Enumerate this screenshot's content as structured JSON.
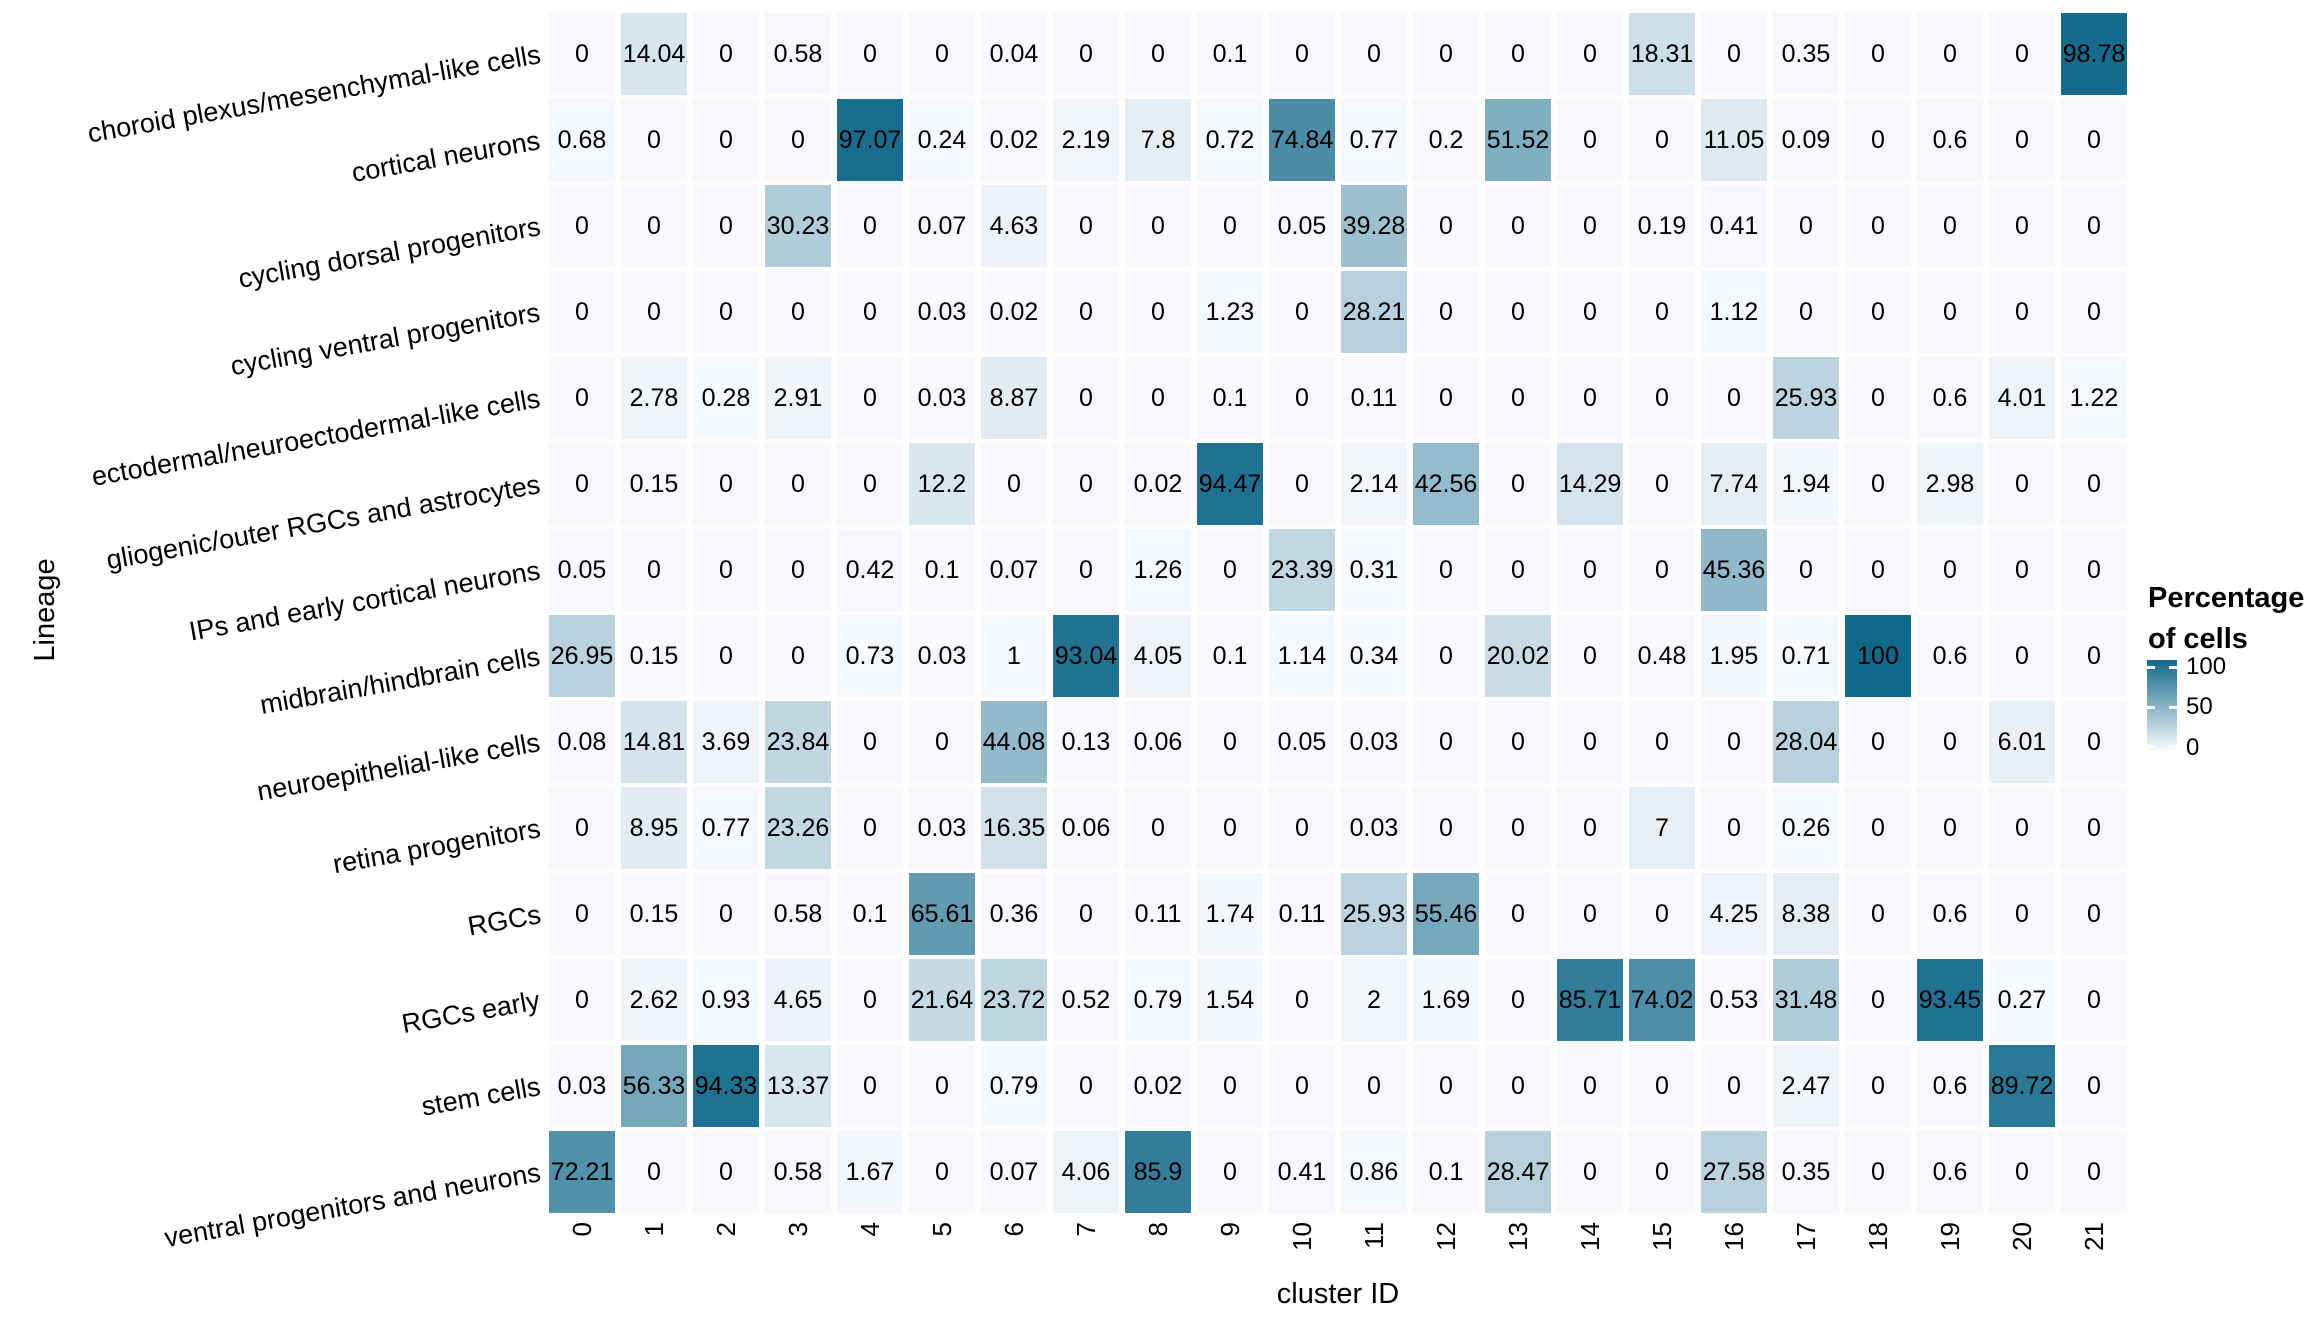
{
  "figure_title": "",
  "legend": {
    "title_line1": "Percentage",
    "title_line2": "of cells",
    "tick_labels": [
      "100",
      "50",
      "0"
    ]
  },
  "chart_data": {
    "type": "heatmap",
    "title": "",
    "xlabel": "cluster ID",
    "ylabel": "Lineage",
    "legend_position": "right",
    "grid": false,
    "color_low": "#f7f9fd",
    "color_high": "#11698a",
    "value_range": [
      0,
      100
    ],
    "colorbar": {
      "title": "Percentage of cells",
      "ticks": [
        100,
        50,
        0
      ]
    },
    "x": [
      "0",
      "1",
      "2",
      "3",
      "4",
      "5",
      "6",
      "7",
      "8",
      "9",
      "10",
      "11",
      "12",
      "13",
      "14",
      "15",
      "16",
      "17",
      "18",
      "19",
      "20",
      "21"
    ],
    "categories": [
      "choroid plexus/mesenchymal-like cells",
      "cortical neurons",
      "cycling dorsal progenitors",
      "cycling ventral progenitors",
      "ectodermal/neuroectodermal-like cells",
      "gliogenic/outer RGCs and astrocytes",
      "IPs and early cortical neurons",
      "midbrain/hindbrain cells",
      "neuroepithelial-like cells",
      "retina progenitors",
      "RGCs",
      "RGCs early",
      "stem cells",
      "ventral progenitors and neurons"
    ],
    "values": [
      [
        0,
        14.04,
        0,
        0.58,
        0,
        0,
        0.04,
        0,
        0,
        0.1,
        0,
        0,
        0,
        0,
        0,
        18.31,
        0,
        0.35,
        0,
        0,
        0,
        98.78
      ],
      [
        0.68,
        0,
        0,
        0,
        97.07,
        0.24,
        0.02,
        2.19,
        7.8,
        0.72,
        74.84,
        0.77,
        0.2,
        51.52,
        0,
        0,
        11.05,
        0.09,
        0,
        0.6,
        0,
        0
      ],
      [
        0,
        0,
        0,
        30.23,
        0,
        0.07,
        4.63,
        0,
        0,
        0,
        0.05,
        39.28,
        0,
        0,
        0,
        0.19,
        0.41,
        0,
        0,
        0,
        0,
        0
      ],
      [
        0,
        0,
        0,
        0,
        0,
        0.03,
        0.02,
        0,
        0,
        1.23,
        0,
        28.21,
        0,
        0,
        0,
        0,
        1.12,
        0,
        0,
        0,
        0,
        0
      ],
      [
        0,
        2.78,
        0.28,
        2.91,
        0,
        0.03,
        8.87,
        0,
        0,
        0.1,
        0,
        0.11,
        0,
        0,
        0,
        0,
        0,
        25.93,
        0,
        0.6,
        4.01,
        1.22
      ],
      [
        0,
        0.15,
        0,
        0,
        0,
        12.2,
        0,
        0,
        0.02,
        94.47,
        0,
        2.14,
        42.56,
        0,
        14.29,
        0,
        7.74,
        1.94,
        0,
        2.98,
        0,
        0
      ],
      [
        0.05,
        0,
        0,
        0,
        0.42,
        0.1,
        0.07,
        0,
        1.26,
        0,
        23.39,
        0.31,
        0,
        0,
        0,
        0,
        45.36,
        0,
        0,
        0,
        0,
        0
      ],
      [
        26.95,
        0.15,
        0,
        0,
        0.73,
        0.03,
        1,
        93.04,
        4.05,
        0.1,
        1.14,
        0.34,
        0,
        20.02,
        0,
        0.48,
        1.95,
        0.71,
        100,
        0.6,
        0,
        0
      ],
      [
        0.08,
        14.81,
        3.69,
        23.84,
        0,
        0,
        44.08,
        0.13,
        0.06,
        0,
        0.05,
        0.03,
        0,
        0,
        0,
        0,
        0,
        28.04,
        0,
        0,
        6.01,
        0
      ],
      [
        0,
        8.95,
        0.77,
        23.26,
        0,
        0.03,
        16.35,
        0.06,
        0,
        0,
        0,
        0.03,
        0,
        0,
        0,
        7,
        0,
        0.26,
        0,
        0,
        0,
        0
      ],
      [
        0,
        0.15,
        0,
        0.58,
        0.1,
        65.61,
        0.36,
        0,
        0.11,
        1.74,
        0.11,
        25.93,
        55.46,
        0,
        0,
        0,
        4.25,
        8.38,
        0,
        0.6,
        0,
        0
      ],
      [
        0,
        2.62,
        0.93,
        4.65,
        0,
        21.64,
        23.72,
        0.52,
        0.79,
        1.54,
        0,
        2,
        1.69,
        0,
        85.71,
        74.02,
        0.53,
        31.48,
        0,
        93.45,
        0.27,
        0
      ],
      [
        0.03,
        56.33,
        94.33,
        13.37,
        0,
        0,
        0.79,
        0,
        0.02,
        0,
        0,
        0,
        0,
        0,
        0,
        0,
        0,
        2.47,
        0,
        0.6,
        89.72,
        0
      ],
      [
        72.21,
        0,
        0,
        0.58,
        1.67,
        0,
        0.07,
        4.06,
        85.9,
        0,
        0.41,
        0.86,
        0.1,
        28.47,
        0,
        0,
        27.58,
        0.35,
        0,
        0.6,
        0,
        0
      ]
    ]
  }
}
